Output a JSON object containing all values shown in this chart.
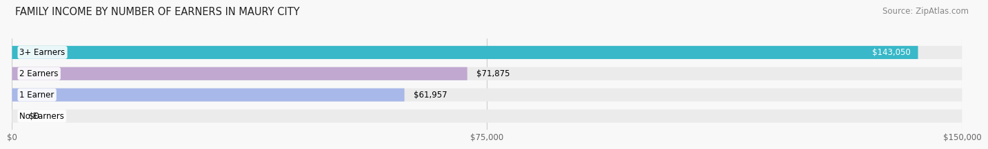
{
  "title": "FAMILY INCOME BY NUMBER OF EARNERS IN MAURY CITY",
  "source": "Source: ZipAtlas.com",
  "categories": [
    "No Earners",
    "1 Earner",
    "2 Earners",
    "3+ Earners"
  ],
  "values": [
    0,
    61957,
    71875,
    143050
  ],
  "bar_colors": [
    "#f0a0a8",
    "#a8b8e8",
    "#c0a8d0",
    "#38b8c8"
  ],
  "bar_bg_color": "#ebebeb",
  "value_labels": [
    "$0",
    "$61,957",
    "$71,875",
    "$143,050"
  ],
  "x_ticks": [
    0,
    75000,
    150000
  ],
  "x_tick_labels": [
    "$0",
    "$75,000",
    "$150,000"
  ],
  "xlim": [
    0,
    150000
  ],
  "title_fontsize": 10.5,
  "source_fontsize": 8.5,
  "label_fontsize": 8.5,
  "value_fontsize": 8.5,
  "tick_fontsize": 8.5,
  "background_color": "#f8f8f8"
}
